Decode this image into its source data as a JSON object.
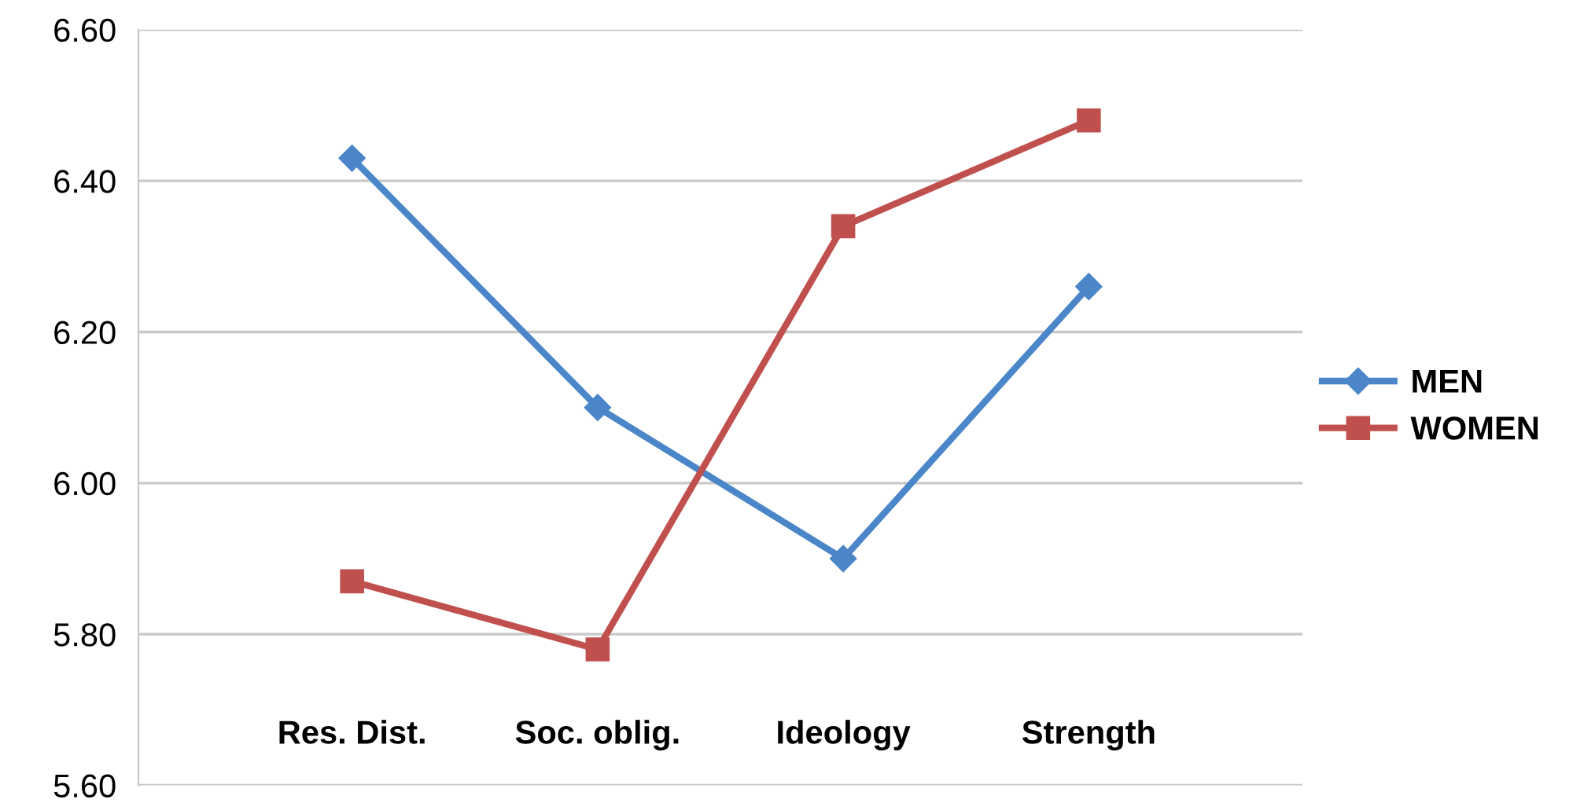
{
  "chart_data": {
    "type": "line",
    "categories": [
      "Res. Dist.",
      "Soc. oblig.",
      "Ideology",
      "Strength"
    ],
    "series": [
      {
        "name": "MEN",
        "color": "#4a86c8",
        "marker": "diamond",
        "values": [
          6.43,
          6.1,
          5.9,
          6.26
        ]
      },
      {
        "name": "WOMEN",
        "color": "#c0504d",
        "marker": "square",
        "values": [
          5.87,
          5.78,
          6.34,
          6.48
        ]
      }
    ],
    "ylim": [
      5.6,
      6.6
    ],
    "yticks": [
      {
        "value": 5.6,
        "label": "5.60"
      },
      {
        "value": 5.8,
        "label": "5.80"
      },
      {
        "value": 6.0,
        "label": "6.00"
      },
      {
        "value": 6.2,
        "label": "6.20"
      },
      {
        "value": 6.4,
        "label": "6.40"
      },
      {
        "value": 6.6,
        "label": "6.60"
      }
    ],
    "grid": "y",
    "legend": "right",
    "line_style": "solid"
  }
}
